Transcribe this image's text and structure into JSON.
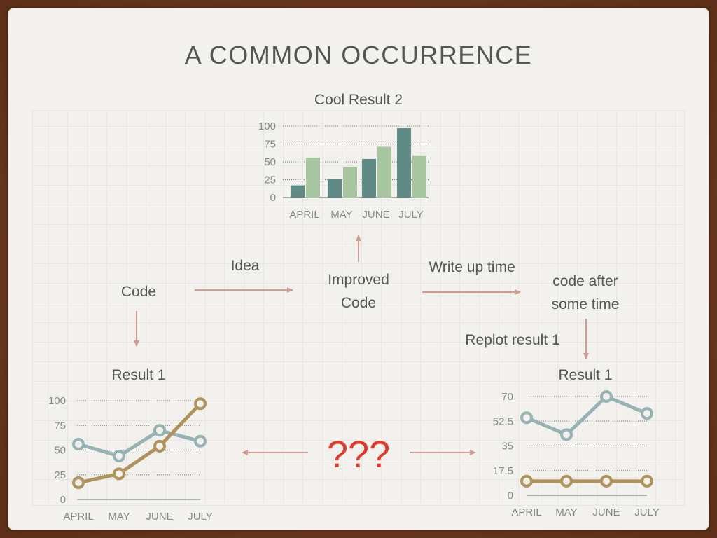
{
  "slide": {
    "title": "A COMMON OCCURRENCE",
    "nodes": {
      "code": "Code",
      "idea": "Idea",
      "improved_line1": "Improved",
      "improved_line2": "Code",
      "write_up": "Write up time",
      "code_after_line1": "code after",
      "code_after_line2": "some time",
      "replot": "Replot result 1",
      "question": "???"
    },
    "colors": {
      "arrow": "#d29a90",
      "teal_dark": "#5f8a85",
      "green_light": "#a7c59e",
      "blue_grey": "#96b2b2",
      "gold": "#b0925a",
      "red": "#e03a2c"
    }
  },
  "chart_data": [
    {
      "id": "cool-result-2",
      "type": "bar",
      "title": "Cool Result 2",
      "categories": [
        "APRIL",
        "MAY",
        "JUNE",
        "JULY"
      ],
      "series": [
        {
          "values": [
            17,
            26,
            54,
            97
          ]
        },
        {
          "values": [
            56,
            43,
            71,
            59
          ]
        }
      ],
      "ylim": [
        0,
        100
      ],
      "yticks": [
        0,
        25,
        50,
        75,
        100
      ],
      "grid": true
    },
    {
      "id": "result-1-left",
      "type": "line",
      "title": "Result 1",
      "categories": [
        "APRIL",
        "MAY",
        "JUNE",
        "JULY"
      ],
      "series": [
        {
          "values": [
            56,
            44,
            70,
            59
          ]
        },
        {
          "values": [
            17,
            26,
            54,
            97
          ]
        }
      ],
      "ylim": [
        0,
        100
      ],
      "yticks": [
        0,
        25,
        50,
        75,
        100
      ],
      "grid": true
    },
    {
      "id": "result-1-right",
      "type": "line",
      "title": "Result 1",
      "categories": [
        "APRIL",
        "MAY",
        "JUNE",
        "JULY"
      ],
      "series": [
        {
          "values": [
            55,
            43,
            70,
            58
          ]
        },
        {
          "values": [
            10,
            10,
            10,
            10
          ]
        }
      ],
      "ylim": [
        0,
        70
      ],
      "yticks": [
        0,
        17.5,
        35,
        52.5,
        70
      ],
      "grid": true
    }
  ]
}
